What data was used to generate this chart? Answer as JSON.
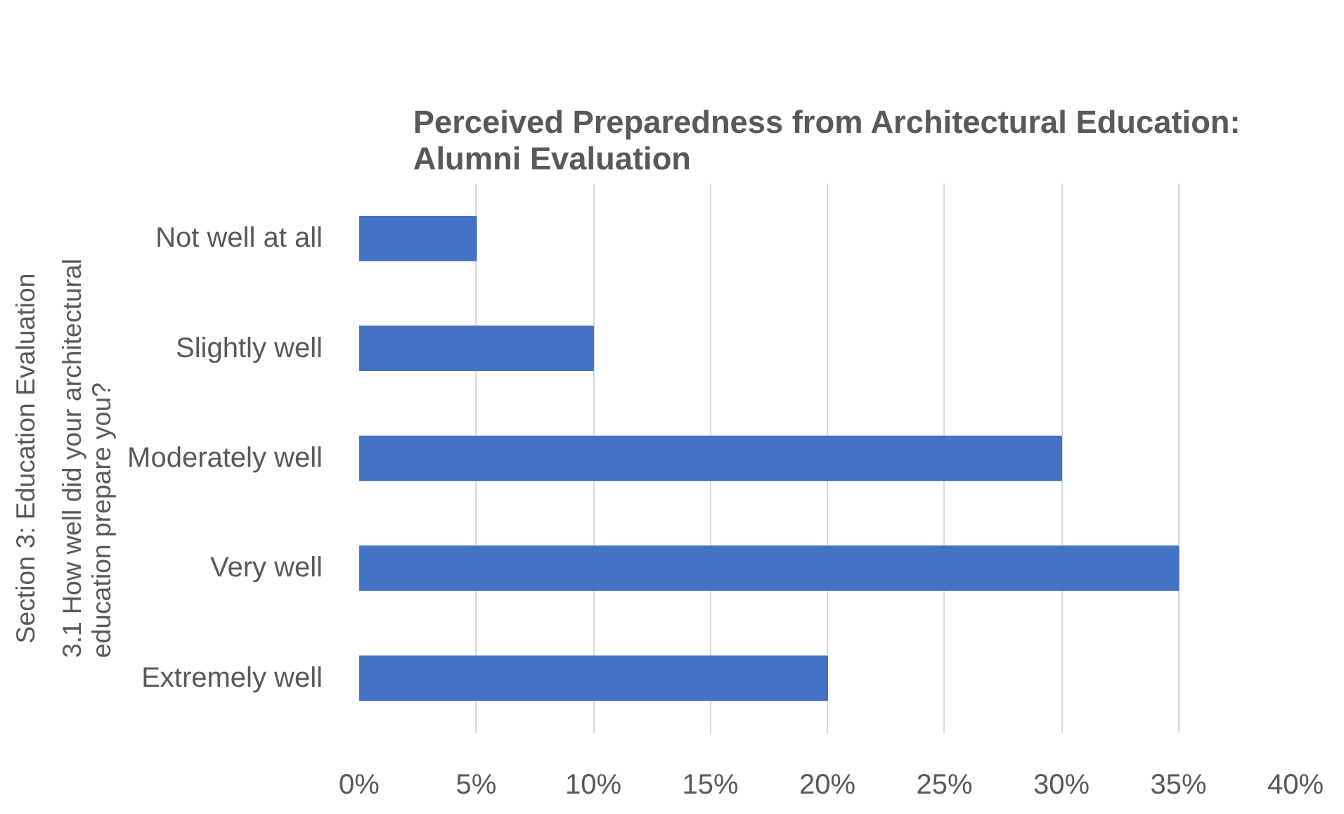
{
  "chart_data": {
    "type": "bar",
    "orientation": "horizontal",
    "title": "Perceived Preparedness from Architectural Education:\nAlumni Evaluation",
    "ylabel": "Section 3: Education Evaluation",
    "annotations": [
      "3.1 How well did your architectural education prepare you?"
    ],
    "categories": [
      "Not well at all",
      "Slightly well",
      "Moderately well",
      "Very well",
      "Extremely well"
    ],
    "values": [
      5,
      10,
      30,
      35,
      20
    ],
    "color": "#4472c4",
    "xlim": [
      0,
      40
    ],
    "xticks": [
      {
        "value": 0,
        "label": "0%"
      },
      {
        "value": 5,
        "label": "5%"
      },
      {
        "value": 10,
        "label": "10%"
      },
      {
        "value": 15,
        "label": "15%"
      },
      {
        "value": 20,
        "label": "20%"
      },
      {
        "value": 25,
        "label": "25%"
      },
      {
        "value": 30,
        "label": "30%"
      },
      {
        "value": 35,
        "label": "35%"
      },
      {
        "value": 40,
        "label": "40%"
      }
    ],
    "grid": "x"
  }
}
